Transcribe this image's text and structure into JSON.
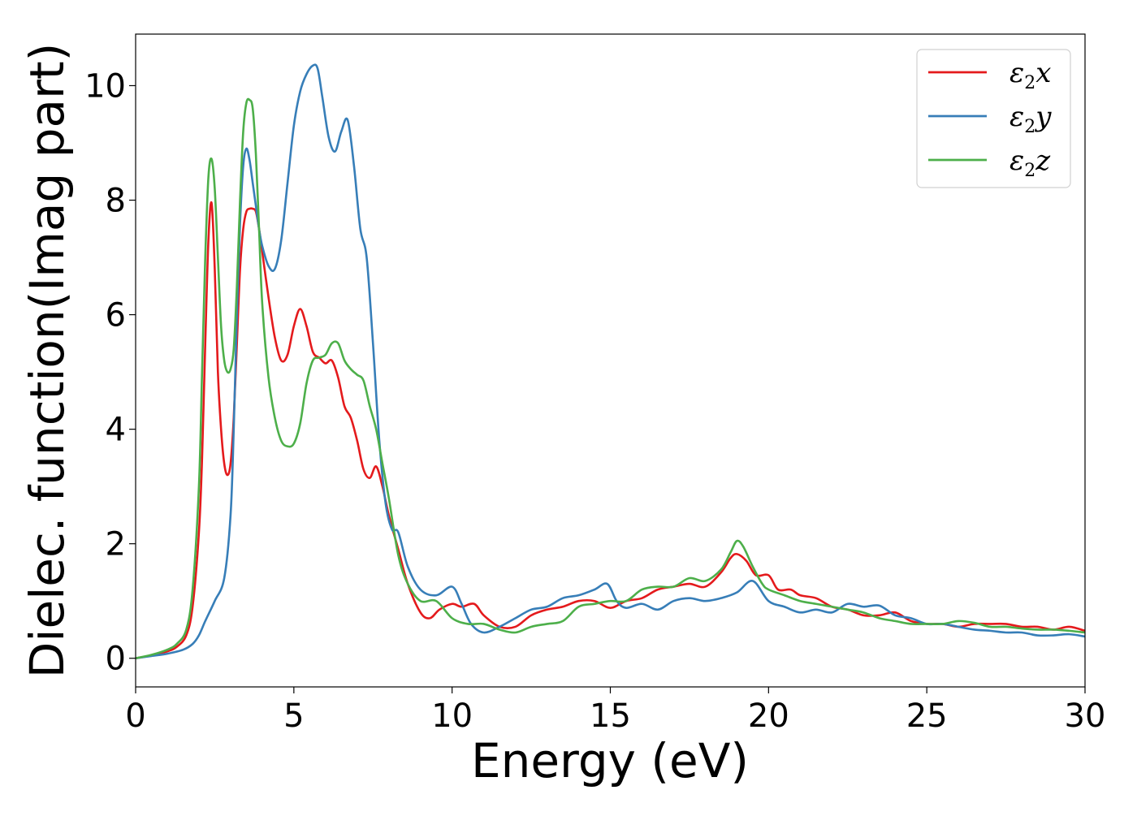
{
  "chart_data": {
    "type": "line",
    "title": "",
    "xlabel": "Energy (eV)",
    "ylabel": "Dielec. function(Imag part)",
    "xlim": [
      0,
      30
    ],
    "ylim": [
      -0.5,
      10.9
    ],
    "xticks": [
      0,
      5,
      10,
      15,
      20,
      25,
      30
    ],
    "yticks": [
      0,
      2,
      4,
      6,
      8,
      10
    ],
    "grid": false,
    "legend_position": "top-right",
    "series": [
      {
        "name": "ε₂x",
        "legend_main": "ε",
        "legend_sub": "2",
        "legend_tail": "x",
        "color": "#e41a1c",
        "x": [
          0,
          0.5,
          1.0,
          1.3,
          1.6,
          1.8,
          2.0,
          2.1,
          2.2,
          2.3,
          2.4,
          2.5,
          2.6,
          2.7,
          2.8,
          2.9,
          3.0,
          3.1,
          3.2,
          3.3,
          3.4,
          3.5,
          3.6,
          3.7,
          3.8,
          3.9,
          4.0,
          4.2,
          4.4,
          4.6,
          4.8,
          5.0,
          5.2,
          5.4,
          5.6,
          5.8,
          6.0,
          6.2,
          6.4,
          6.6,
          6.8,
          7.0,
          7.2,
          7.4,
          7.6,
          7.8,
          8.0,
          8.3,
          8.6,
          9.0,
          9.3,
          9.6,
          10.0,
          10.3,
          10.7,
          11.0,
          11.5,
          12.0,
          12.5,
          13.0,
          13.5,
          14.0,
          14.5,
          15.0,
          15.5,
          16.0,
          16.5,
          17.0,
          17.5,
          18.0,
          18.5,
          18.8,
          19.0,
          19.3,
          19.6,
          20.0,
          20.3,
          20.7,
          21.0,
          21.5,
          22.0,
          22.5,
          23.0,
          23.5,
          24.0,
          24.5,
          25.0,
          25.5,
          26.0,
          26.5,
          27.0,
          27.5,
          28.0,
          28.5,
          29.0,
          29.5,
          30.0
        ],
        "y": [
          0,
          0.05,
          0.12,
          0.2,
          0.4,
          0.9,
          2.2,
          3.5,
          5.5,
          7.3,
          7.95,
          6.8,
          5.0,
          4.0,
          3.4,
          3.2,
          3.4,
          4.2,
          5.5,
          6.8,
          7.5,
          7.8,
          7.85,
          7.85,
          7.8,
          7.5,
          7.1,
          6.3,
          5.6,
          5.2,
          5.3,
          5.8,
          6.1,
          5.8,
          5.35,
          5.25,
          5.15,
          5.2,
          4.9,
          4.4,
          4.2,
          3.8,
          3.3,
          3.15,
          3.35,
          3.0,
          2.5,
          1.9,
          1.3,
          0.8,
          0.7,
          0.85,
          0.95,
          0.9,
          0.95,
          0.75,
          0.55,
          0.55,
          0.75,
          0.85,
          0.9,
          1.0,
          1.0,
          0.88,
          1.0,
          1.05,
          1.2,
          1.25,
          1.3,
          1.25,
          1.5,
          1.75,
          1.82,
          1.7,
          1.45,
          1.45,
          1.2,
          1.2,
          1.1,
          1.05,
          0.9,
          0.85,
          0.75,
          0.75,
          0.8,
          0.65,
          0.6,
          0.6,
          0.55,
          0.6,
          0.6,
          0.6,
          0.55,
          0.55,
          0.5,
          0.55,
          0.48
        ]
      },
      {
        "name": "ε₂y",
        "legend_main": "ε",
        "legend_sub": "2",
        "legend_tail": "y",
        "color": "#377eb8",
        "x": [
          0,
          0.5,
          1.0,
          1.5,
          1.8,
          2.0,
          2.2,
          2.5,
          2.8,
          3.0,
          3.1,
          3.2,
          3.3,
          3.4,
          3.5,
          3.6,
          3.7,
          3.8,
          3.9,
          4.0,
          4.2,
          4.4,
          4.6,
          4.8,
          5.0,
          5.2,
          5.4,
          5.6,
          5.75,
          5.9,
          6.1,
          6.3,
          6.5,
          6.7,
          6.9,
          7.1,
          7.3,
          7.5,
          7.7,
          7.9,
          8.1,
          8.3,
          8.6,
          9.0,
          9.5,
          10.0,
          10.3,
          10.6,
          11.0,
          11.5,
          12.0,
          12.5,
          13.0,
          13.5,
          14.0,
          14.5,
          14.9,
          15.2,
          15.5,
          16.0,
          16.5,
          17.0,
          17.5,
          18.0,
          18.5,
          19.0,
          19.5,
          20.0,
          20.5,
          21.0,
          21.5,
          22.0,
          22.5,
          23.0,
          23.5,
          24.0,
          24.5,
          25.0,
          25.5,
          26.0,
          26.5,
          27.0,
          27.5,
          28.0,
          28.5,
          29.0,
          29.5,
          30.0
        ],
        "y": [
          0,
          0.04,
          0.08,
          0.15,
          0.25,
          0.4,
          0.65,
          1.0,
          1.4,
          2.5,
          4.0,
          6.0,
          7.6,
          8.6,
          8.9,
          8.7,
          8.3,
          7.9,
          7.5,
          7.2,
          6.85,
          6.8,
          7.3,
          8.3,
          9.3,
          9.9,
          10.2,
          10.35,
          10.3,
          9.8,
          9.1,
          8.85,
          9.2,
          9.4,
          8.6,
          7.5,
          7.0,
          5.5,
          3.8,
          2.7,
          2.25,
          2.2,
          1.6,
          1.2,
          1.1,
          1.25,
          0.95,
          0.6,
          0.45,
          0.55,
          0.7,
          0.85,
          0.9,
          1.05,
          1.1,
          1.2,
          1.3,
          1.0,
          0.88,
          0.95,
          0.85,
          1.0,
          1.05,
          1.0,
          1.05,
          1.15,
          1.35,
          1.0,
          0.9,
          0.8,
          0.85,
          0.8,
          0.95,
          0.9,
          0.92,
          0.75,
          0.7,
          0.6,
          0.6,
          0.55,
          0.5,
          0.48,
          0.45,
          0.45,
          0.4,
          0.4,
          0.42,
          0.38
        ]
      },
      {
        "name": "ε₂z",
        "legend_main": "ε",
        "legend_sub": "2",
        "legend_tail": "z",
        "color": "#4daf4a",
        "x": [
          0,
          0.5,
          1.0,
          1.3,
          1.6,
          1.8,
          2.0,
          2.1,
          2.2,
          2.3,
          2.4,
          2.5,
          2.6,
          2.7,
          2.8,
          2.9,
          3.0,
          3.1,
          3.2,
          3.3,
          3.4,
          3.5,
          3.6,
          3.7,
          3.8,
          3.9,
          4.0,
          4.2,
          4.4,
          4.6,
          4.8,
          5.0,
          5.2,
          5.4,
          5.6,
          5.8,
          6.0,
          6.2,
          6.4,
          6.6,
          6.8,
          7.0,
          7.2,
          7.4,
          7.6,
          7.8,
          8.0,
          8.3,
          8.6,
          9.0,
          9.5,
          10.0,
          10.5,
          11.0,
          11.5,
          12.0,
          12.5,
          13.0,
          13.5,
          14.0,
          14.5,
          15.0,
          15.5,
          16.0,
          16.5,
          17.0,
          17.5,
          18.0,
          18.5,
          18.8,
          19.0,
          19.2,
          19.5,
          19.8,
          20.0,
          20.5,
          21.0,
          21.5,
          22.0,
          22.5,
          23.0,
          23.5,
          24.0,
          24.5,
          25.0,
          25.5,
          26.0,
          26.5,
          27.0,
          27.5,
          28.0,
          28.5,
          29.0,
          29.5,
          30.0
        ],
        "y": [
          0,
          0.06,
          0.15,
          0.25,
          0.5,
          1.2,
          3.0,
          5.0,
          7.0,
          8.4,
          8.72,
          8.2,
          7.0,
          5.8,
          5.2,
          5.0,
          5.05,
          5.4,
          6.5,
          8.0,
          9.2,
          9.7,
          9.75,
          9.6,
          8.8,
          7.5,
          6.2,
          4.9,
          4.2,
          3.8,
          3.7,
          3.75,
          4.1,
          4.8,
          5.2,
          5.25,
          5.3,
          5.5,
          5.5,
          5.2,
          5.05,
          4.95,
          4.85,
          4.4,
          4.0,
          3.4,
          2.8,
          1.8,
          1.3,
          1.0,
          1.0,
          0.7,
          0.6,
          0.6,
          0.5,
          0.45,
          0.55,
          0.6,
          0.65,
          0.9,
          0.95,
          1.0,
          1.0,
          1.2,
          1.25,
          1.25,
          1.4,
          1.35,
          1.55,
          1.85,
          2.05,
          1.95,
          1.6,
          1.3,
          1.2,
          1.1,
          1.0,
          0.95,
          0.9,
          0.85,
          0.8,
          0.7,
          0.65,
          0.6,
          0.6,
          0.6,
          0.65,
          0.62,
          0.55,
          0.55,
          0.52,
          0.5,
          0.5,
          0.48,
          0.45
        ]
      }
    ]
  }
}
